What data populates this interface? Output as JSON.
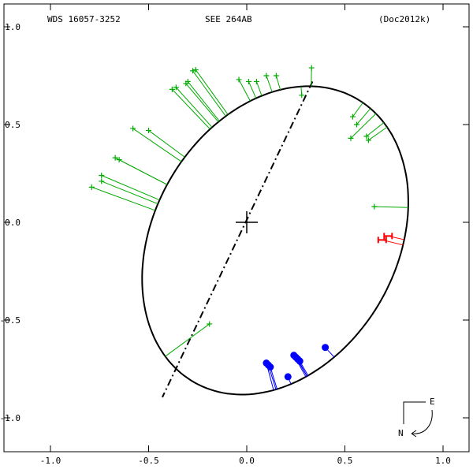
{
  "header": {
    "left": "WDS 16057-3252",
    "center": "SEE 264AB",
    "right": "(Doc2012k)"
  },
  "compass": {
    "east": "E",
    "north": "N"
  },
  "chart_data": {
    "type": "scatter",
    "title": "SEE 264AB",
    "xlim": [
      -1.2,
      1.2
    ],
    "ylim": [
      -1.2,
      1.1
    ],
    "x_ticks": [
      {
        "value": -1.0,
        "label": "-1.0"
      },
      {
        "value": -0.5,
        "label": "-0.5"
      },
      {
        "value": 0.0,
        "label": "0.0"
      },
      {
        "value": 0.5,
        "label": "0.5"
      },
      {
        "value": 1.0,
        "label": "1.0"
      }
    ],
    "y_ticks": [
      {
        "value": 1.0,
        "label": "1.0"
      },
      {
        "value": 0.5,
        "label": "0.5"
      },
      {
        "value": 0.0,
        "label": "0.0"
      },
      {
        "value": -0.5,
        "label": "-0.5"
      },
      {
        "value": -1.0,
        "label": "-1.0"
      }
    ],
    "orbit": {
      "center": [
        0.145,
        -0.0925
      ],
      "a": 0.835,
      "b": 0.62,
      "tilt_deg": 60.6
    },
    "line_of_nodes": [
      [
        0.335,
        0.72
      ],
      [
        -0.43,
        -0.895
      ]
    ],
    "primary": [
      0.0,
      0.0
    ],
    "colors": {
      "orbit": "#000000",
      "visual": "#00aa00",
      "micrometer": "#0000ff",
      "speckle": "#ff0000"
    },
    "series": [
      {
        "marker": "plus",
        "color": "#00aa00",
        "points": [
          [
            -0.26,
            0.78
          ],
          [
            -0.275,
            0.775
          ],
          [
            -0.38,
            0.68
          ],
          [
            -0.3,
            0.72
          ],
          [
            -0.31,
            0.71
          ],
          [
            -0.36,
            0.69
          ],
          [
            -0.58,
            0.48
          ],
          [
            -0.5,
            0.47
          ],
          [
            -0.65,
            0.32
          ],
          [
            -0.67,
            0.33
          ],
          [
            -0.74,
            0.24
          ],
          [
            -0.74,
            0.21
          ],
          [
            -0.79,
            0.18
          ],
          [
            -0.04,
            0.73
          ],
          [
            0.01,
            0.72
          ],
          [
            0.05,
            0.72
          ],
          [
            0.1,
            0.75
          ],
          [
            0.15,
            0.75
          ],
          [
            0.33,
            0.79
          ],
          [
            0.28,
            0.65
          ],
          [
            0.54,
            0.54
          ],
          [
            0.56,
            0.5
          ],
          [
            0.61,
            0.44
          ],
          [
            0.62,
            0.42
          ],
          [
            0.53,
            0.43
          ],
          [
            0.65,
            0.08
          ],
          [
            -0.19,
            -0.52
          ]
        ]
      },
      {
        "marker": "circle",
        "color": "#0000ff",
        "points": [
          [
            0.1,
            -0.72
          ],
          [
            0.11,
            -0.73
          ],
          [
            0.12,
            -0.74
          ],
          [
            0.24,
            -0.68
          ],
          [
            0.25,
            -0.69
          ],
          [
            0.26,
            -0.7
          ],
          [
            0.27,
            -0.71
          ],
          [
            0.21,
            -0.79
          ],
          [
            0.4,
            -0.64
          ]
        ]
      },
      {
        "marker": "errorbar",
        "color": "#ff0000",
        "points": [
          [
            0.69,
            -0.09
          ],
          [
            0.72,
            -0.07
          ]
        ]
      }
    ]
  }
}
